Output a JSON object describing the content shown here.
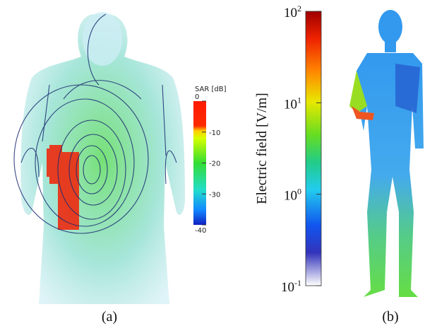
{
  "panel_a": {
    "colorbar": {
      "title": "SAR [dB]",
      "ticks": [
        "0",
        "-10",
        "-20",
        "-30",
        "-40"
      ]
    },
    "caption": "(a)"
  },
  "panel_b": {
    "colorbar": {
      "title": "Electric field [V/m]",
      "ticks": [
        {
          "base": "10",
          "exponent": "2"
        },
        {
          "base": "10",
          "exponent": "1"
        },
        {
          "base": "10",
          "exponent": "0"
        },
        {
          "base": "10",
          "exponent": "-1"
        }
      ]
    },
    "caption": "(b)"
  }
}
